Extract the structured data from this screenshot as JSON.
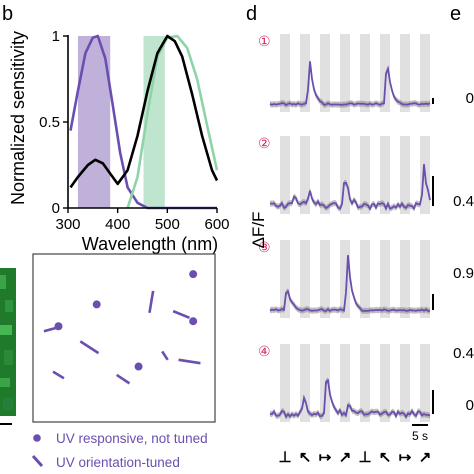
{
  "panel_letters": {
    "left": "b",
    "middle": "d",
    "right": "e"
  },
  "chart_data": [
    {
      "type": "line",
      "ylabel": "Normalized sensitivity",
      "xlabel": "Wavelength (nm)",
      "xlim": [
        300,
        600
      ],
      "ylim": [
        0,
        1
      ],
      "x_ticks": [
        "300",
        "400",
        "500",
        "600"
      ],
      "y_ticks": [
        "0",
        "0.5",
        "1"
      ],
      "shaded_bands": [
        {
          "from": 320,
          "to": 385,
          "color": "#b5a3d4"
        },
        {
          "from": 452,
          "to": 495,
          "color": "#b5e0c6"
        }
      ],
      "series": [
        {
          "color": "#6a4fb0",
          "points": [
            [
              305,
              0.45
            ],
            [
              320,
              0.68
            ],
            [
              335,
              0.9
            ],
            [
              350,
              0.99
            ],
            [
              360,
              1.0
            ],
            [
              375,
              0.87
            ],
            [
              390,
              0.6
            ],
            [
              405,
              0.32
            ],
            [
              420,
              0.12
            ],
            [
              440,
              0.03
            ],
            [
              460,
              0.0
            ],
            [
              600,
              0.0
            ]
          ]
        },
        {
          "color": "#8fd4a8",
          "points": [
            [
              420,
              0.0
            ],
            [
              440,
              0.18
            ],
            [
              460,
              0.55
            ],
            [
              480,
              0.88
            ],
            [
              500,
              0.99
            ],
            [
              520,
              1.0
            ],
            [
              540,
              0.93
            ],
            [
              560,
              0.75
            ],
            [
              580,
              0.48
            ],
            [
              600,
              0.22
            ]
          ]
        },
        {
          "color": "#000000",
          "points": [
            [
              305,
              0.12
            ],
            [
              320,
              0.18
            ],
            [
              340,
              0.25
            ],
            [
              355,
              0.28
            ],
            [
              370,
              0.26
            ],
            [
              385,
              0.2
            ],
            [
              400,
              0.14
            ],
            [
              420,
              0.22
            ],
            [
              440,
              0.42
            ],
            [
              460,
              0.68
            ],
            [
              480,
              0.9
            ],
            [
              500,
              1.0
            ],
            [
              515,
              0.97
            ],
            [
              530,
              0.88
            ],
            [
              550,
              0.66
            ],
            [
              570,
              0.42
            ],
            [
              590,
              0.22
            ],
            [
              600,
              0.16
            ]
          ]
        }
      ]
    }
  ],
  "legend": {
    "item1": "UV responsive, not tuned",
    "item2": "UV orientation-tuned"
  },
  "map_markers": {
    "dots": [
      [
        0.88,
        0.12
      ],
      [
        0.35,
        0.3
      ],
      [
        0.88,
        0.4
      ],
      [
        0.14,
        0.43
      ],
      [
        0.58,
        0.67
      ]
    ],
    "bars": [
      [
        [
          0.06,
          0.46
        ],
        [
          0.16,
          0.43
        ]
      ],
      [
        [
          0.66,
          0.22
        ],
        [
          0.64,
          0.35
        ]
      ],
      [
        [
          0.77,
          0.34
        ],
        [
          0.86,
          0.38
        ]
      ],
      [
        [
          0.26,
          0.52
        ],
        [
          0.36,
          0.59
        ]
      ],
      [
        [
          0.71,
          0.58
        ],
        [
          0.74,
          0.63
        ]
      ],
      [
        [
          0.8,
          0.63
        ],
        [
          0.92,
          0.65
        ]
      ],
      [
        [
          0.46,
          0.72
        ],
        [
          0.53,
          0.77
        ]
      ],
      [
        [
          0.11,
          0.7
        ],
        [
          0.17,
          0.74
        ]
      ]
    ]
  },
  "traces": {
    "ylabel": "ΔF/F",
    "cells": [
      "①",
      "②",
      "③",
      "④"
    ],
    "scale_label": "5 s",
    "orientation_symbols": [
      "⊥",
      "↖",
      "↦",
      "↗",
      "⊥",
      "↖",
      "↦",
      "↗"
    ],
    "right_ticks": [
      "0",
      "0.4",
      "0.9",
      "0.4",
      "0"
    ]
  }
}
